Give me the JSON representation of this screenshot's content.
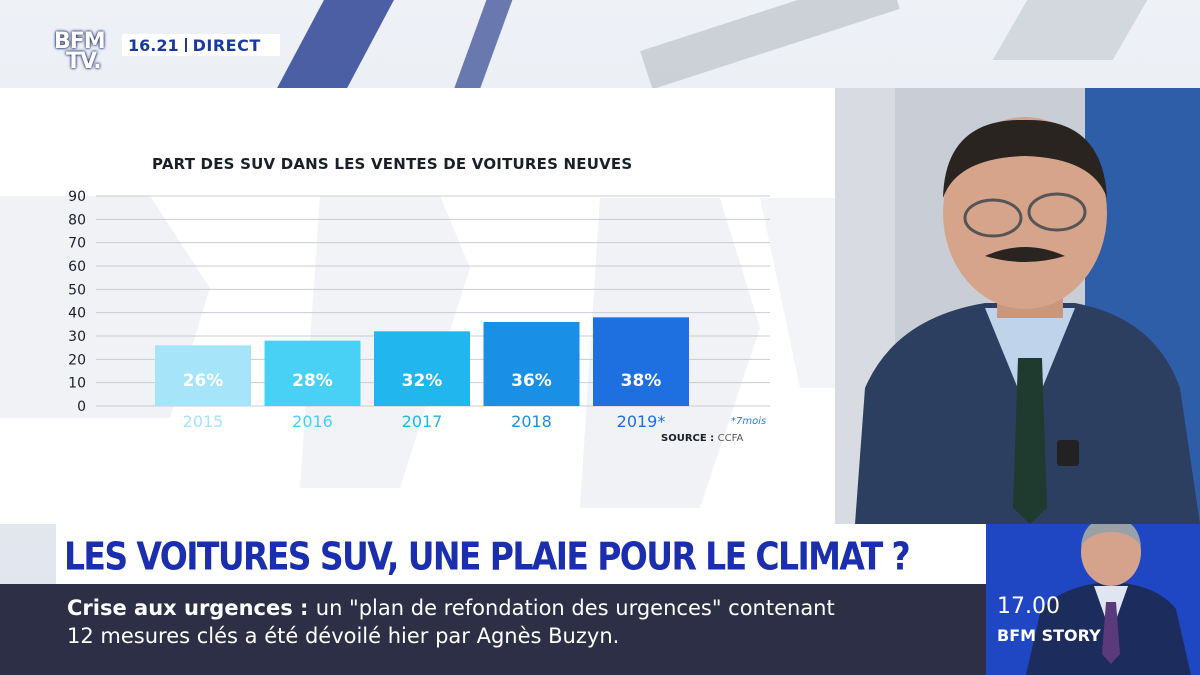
{
  "broadcast": {
    "logo_line1": "BFM",
    "logo_line2": "TV.",
    "time": "16.21",
    "live_label": "DIRECT"
  },
  "headline": "LES VOITURES SUV, UNE PLAIE POUR LE CLIMAT ?",
  "ticker": {
    "topic": "Crise aux urgences",
    "separator": " : ",
    "line1_rest": "un \"plan de refondation des urgences\" contenant",
    "line2": "12 mesures clés a été dévoilé hier par Agnès Buzyn."
  },
  "next_program": {
    "time": "17.00",
    "name": "BFM STORY"
  },
  "chart_data": {
    "type": "bar",
    "title": "PART DES SUV DANS LES VENTES DE VOITURES NEUVES",
    "categories": [
      "2015",
      "2016",
      "2017",
      "2018",
      "2019*"
    ],
    "values": [
      26,
      28,
      32,
      36,
      38
    ],
    "value_labels": [
      "26%",
      "28%",
      "32%",
      "36%",
      "38%"
    ],
    "colors": [
      "#a6e4fa",
      "#49d0f5",
      "#22b6ee",
      "#1a8fe6",
      "#1e6fe0"
    ],
    "category_colors": [
      "#a6e4fa",
      "#49d0f5",
      "#22b6ee",
      "#1a8fe6",
      "#1e6fe0"
    ],
    "yticks": [
      0,
      10,
      20,
      30,
      40,
      50,
      60,
      70,
      80,
      90
    ],
    "ylim": [
      0,
      90
    ],
    "grid": true,
    "note": "*7mois",
    "source_label": "SOURCE :",
    "source_value": "CCFA"
  }
}
